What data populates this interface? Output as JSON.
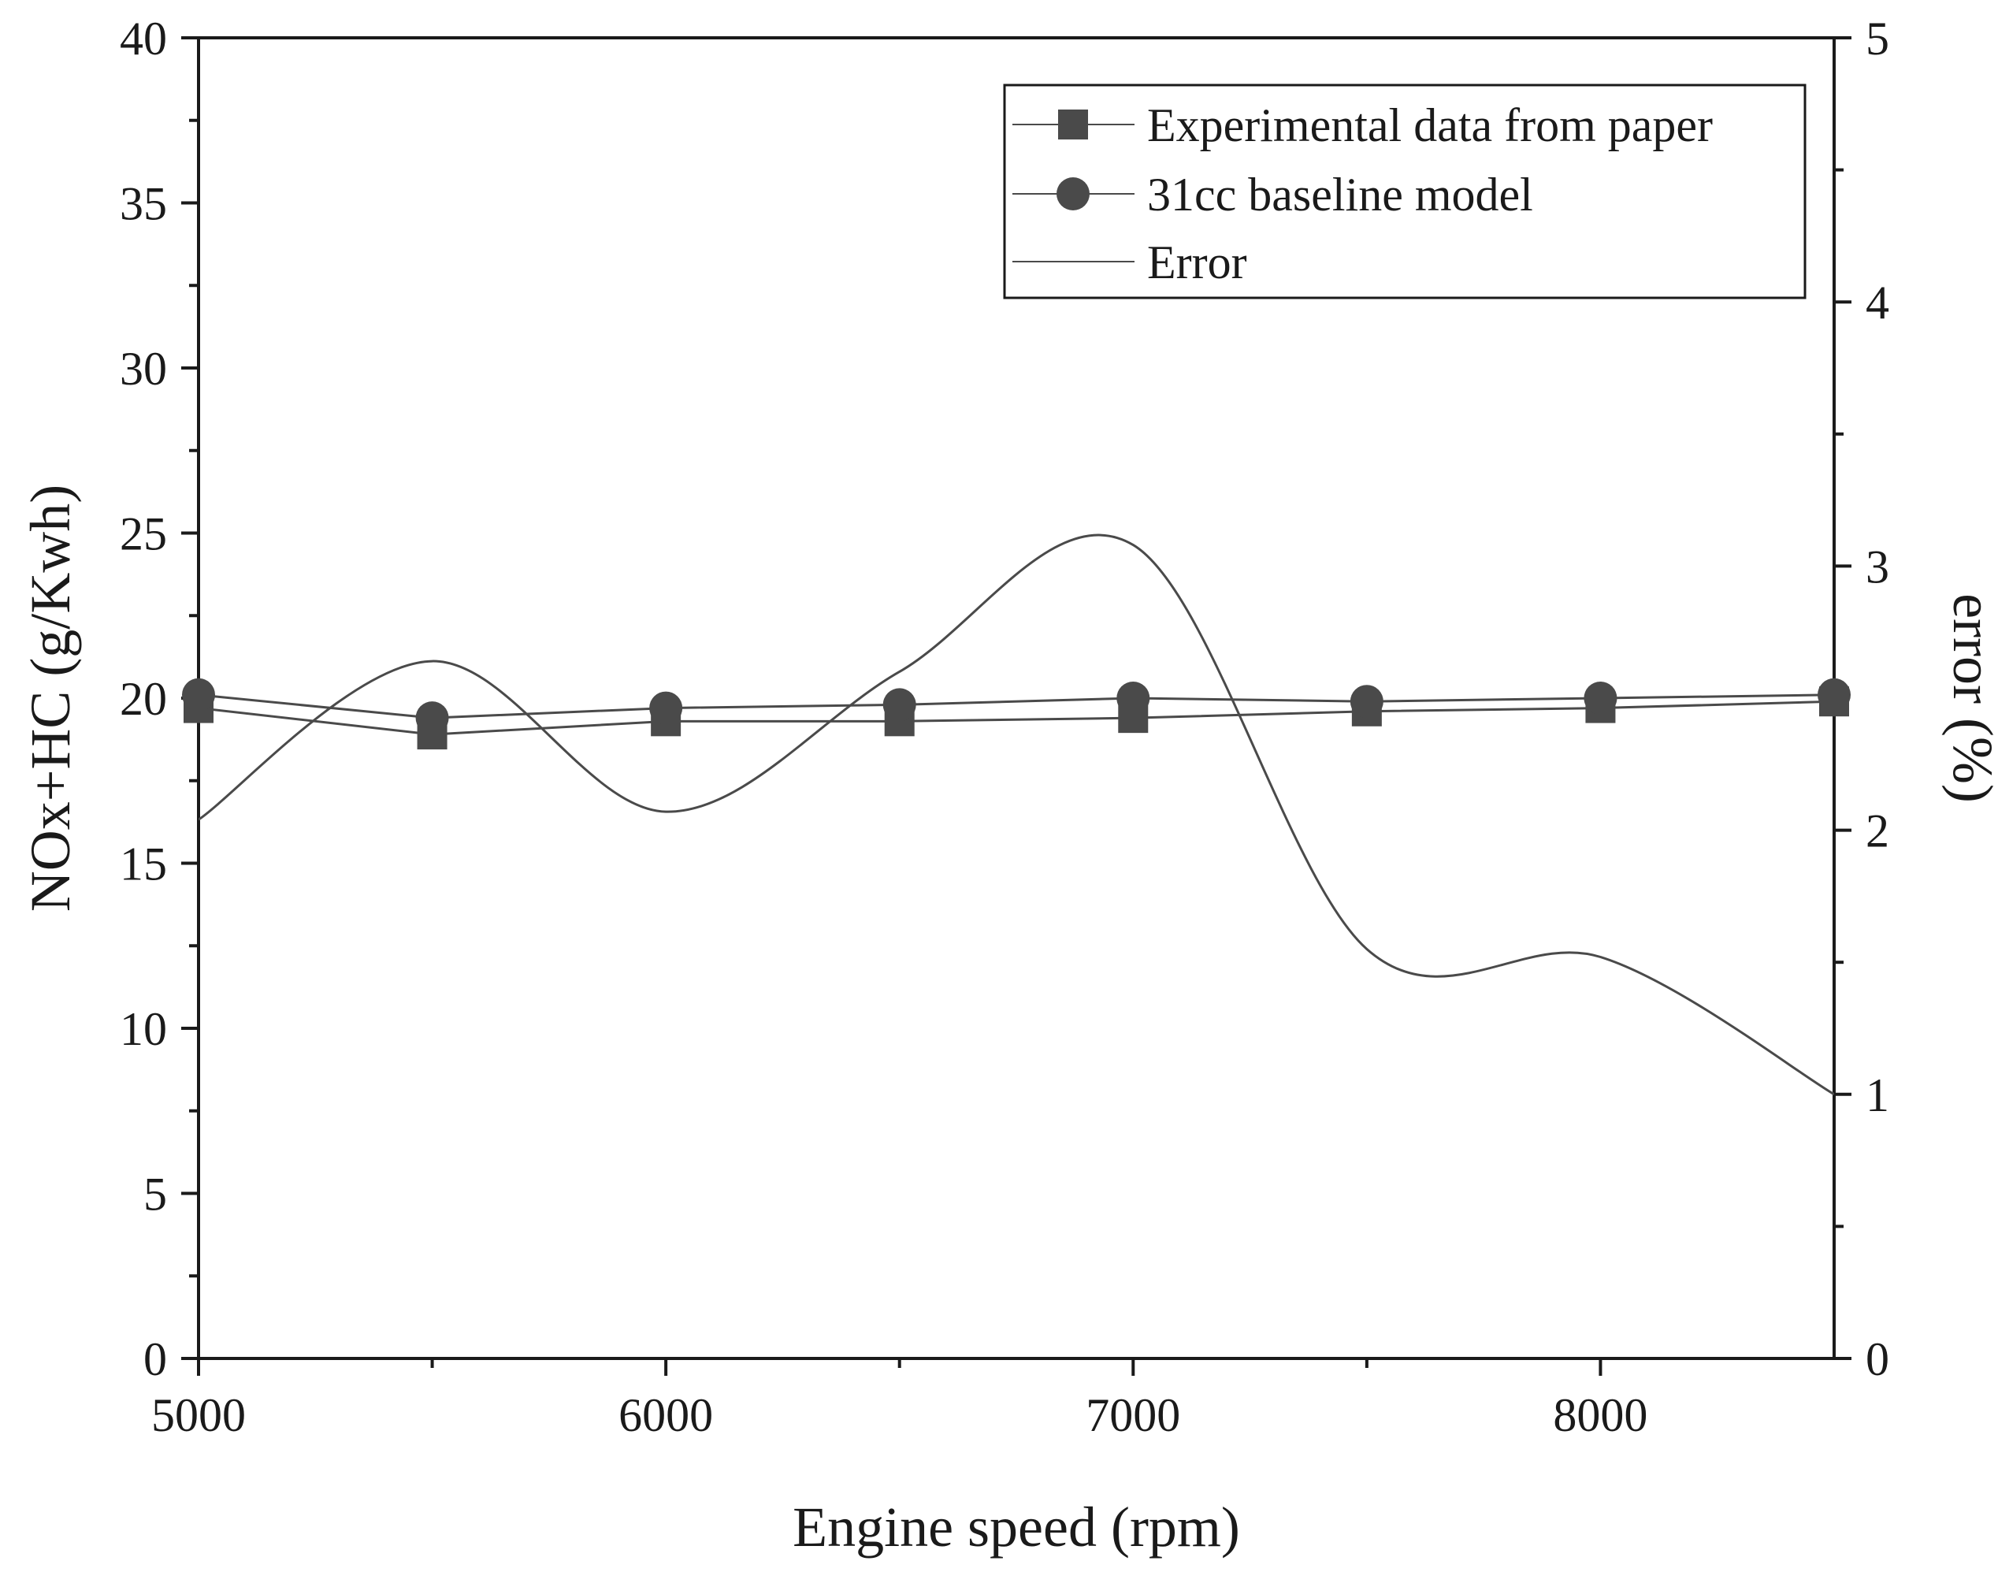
{
  "chart_data": {
    "type": "line",
    "title": "",
    "xlabel": "Engine speed (rpm)",
    "ylabel": "NOx+HC (g/Kwh)",
    "y2label": "error (%)",
    "xlim": [
      5000,
      8500
    ],
    "ylim": [
      0,
      40
    ],
    "y2lim": [
      0,
      5
    ],
    "x_ticks": [
      5000,
      6000,
      7000,
      8000
    ],
    "x_tick_labels": [
      "5000",
      "6000",
      "7000",
      "8000"
    ],
    "y_ticks": [
      0,
      5,
      10,
      15,
      20,
      25,
      30,
      35,
      40
    ],
    "y_tick_labels": [
      "0",
      "5",
      "10",
      "15",
      "20",
      "25",
      "30",
      "35",
      "40"
    ],
    "y2_ticks": [
      0,
      1,
      2,
      3,
      4,
      5
    ],
    "y2_tick_labels": [
      "0",
      "1",
      "2",
      "3",
      "4",
      "5"
    ],
    "grid": false,
    "legend_position": "top-right",
    "series": [
      {
        "name": "Experimental data from paper",
        "axis": "left",
        "marker": "square",
        "color": "#4a4a4a",
        "x": [
          5000,
          5500,
          6000,
          6500,
          7000,
          7500,
          8000,
          8500
        ],
        "values": [
          19.7,
          18.9,
          19.3,
          19.3,
          19.4,
          19.6,
          19.7,
          19.9
        ]
      },
      {
        "name": "31cc baseline model",
        "axis": "left",
        "marker": "circle",
        "color": "#4a4a4a",
        "x": [
          5000,
          5500,
          6000,
          6500,
          7000,
          7500,
          8000,
          8500
        ],
        "values": [
          20.1,
          19.4,
          19.7,
          19.8,
          20.0,
          19.9,
          20.0,
          20.1
        ]
      },
      {
        "name": "Error",
        "axis": "right",
        "marker": "none",
        "smooth": true,
        "color": "#4a4a4a",
        "x": [
          5000,
          5500,
          6000,
          6500,
          7000,
          7500,
          8000,
          8500
        ],
        "values": [
          2.04,
          2.64,
          2.07,
          2.6,
          3.08,
          1.55,
          1.52,
          1.0
        ]
      }
    ]
  }
}
